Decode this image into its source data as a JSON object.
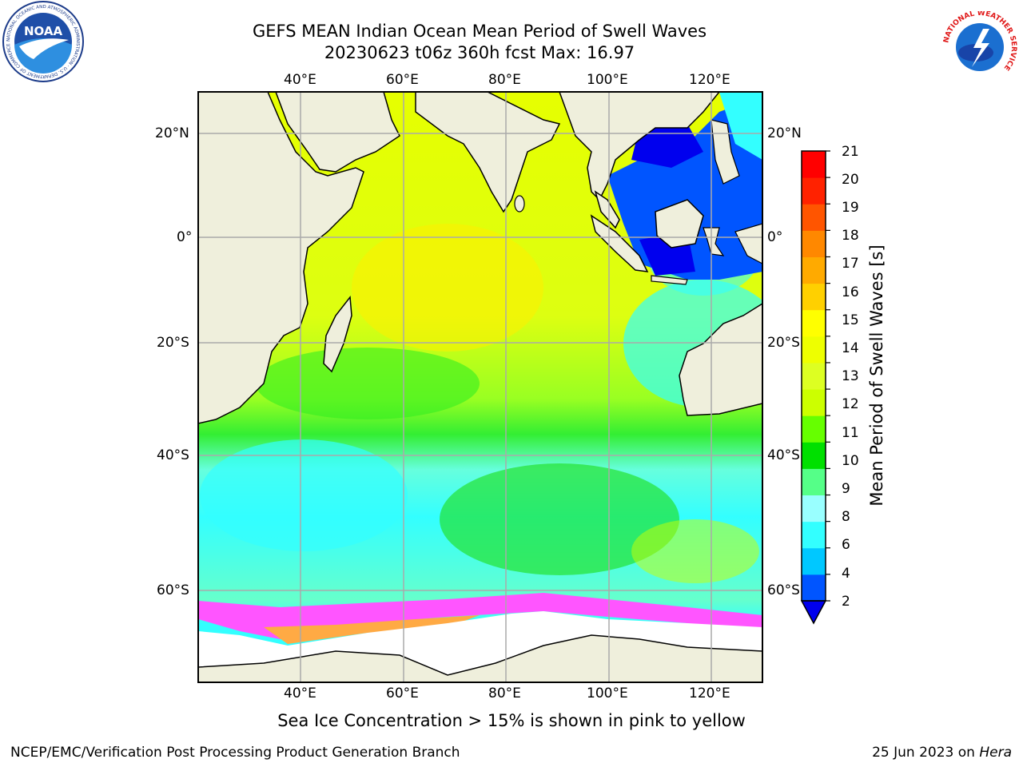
{
  "title": {
    "line1": "GEFS MEAN Indian Ocean Mean Period of Swell Waves",
    "line2": "20230623 t06z 360h fcst   Max: 16.97"
  },
  "axes": {
    "lon_ticks": [
      "40°E",
      "60°E",
      "80°E",
      "100°E",
      "120°E"
    ],
    "lat_ticks": [
      "20°N",
      "0°",
      "20°S",
      "40°S",
      "60°S"
    ],
    "lon_range": [
      20,
      130
    ],
    "lat_range": [
      -72,
      28
    ],
    "grid": true
  },
  "colorbar": {
    "label": "Mean Period of Swell Waves [s]",
    "ticks": [
      "2",
      "4",
      "6",
      "8",
      "9",
      "10",
      "11",
      "12",
      "13",
      "14",
      "15",
      "16",
      "17",
      "18",
      "19",
      "20",
      "21"
    ],
    "colors": [
      "#0055ff",
      "#00c8ff",
      "#33ffff",
      "#99ffff",
      "#55ff88",
      "#00e000",
      "#66ff00",
      "#ccff00",
      "#ddff22",
      "#eeff00",
      "#ffff00",
      "#ffd000",
      "#ffaa00",
      "#ff8800",
      "#ff5500",
      "#ff2200",
      "#ff0000"
    ],
    "under_color": "#0000ee",
    "extend": "min"
  },
  "map": {
    "land_color": "#efefdc",
    "ice_colors": [
      "#ff55ff",
      "#ffaa44",
      "#ffcc55"
    ],
    "max_value": 16.97
  },
  "notes": {
    "sea_ice": "Sea Ice Concentration > 15% is shown in pink to yellow",
    "footer_left": "NCEP/EMC/Verification Post Processing Product Generation Branch",
    "footer_date": "25 Jun 2023 on ",
    "footer_machine": "Hera"
  },
  "logos": {
    "noaa_text": "NOAA",
    "noaa_ring": "NATIONAL OCEANIC AND ATMOSPHERIC ADMINISTRATION · U.S. DEPARTMENT OF COMMERCE",
    "nws_ring": "NATIONAL WEATHER SERVICE"
  }
}
